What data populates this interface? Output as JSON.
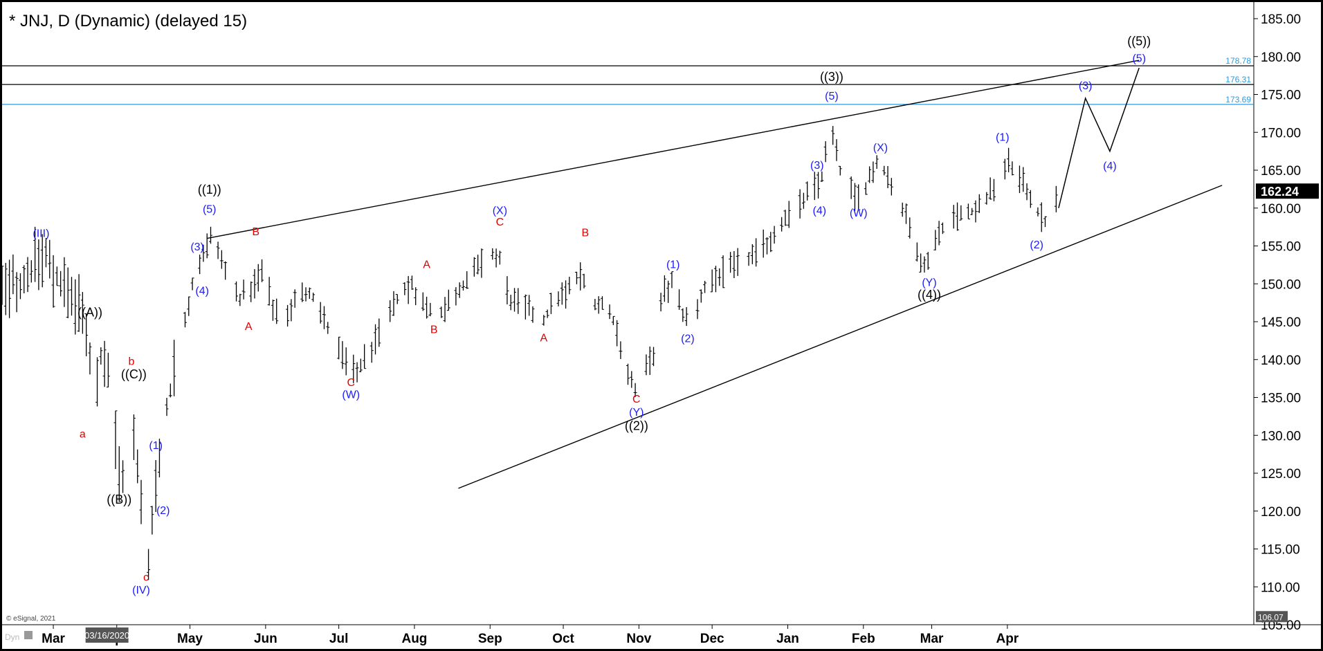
{
  "title": "* JNJ, D (Dynamic) (delayed 15)",
  "copyright": "© eSignal, 2021",
  "corner_label": "Dyn",
  "current_price": "162.24",
  "low_label": "106.07",
  "date_marker": "03/16/2020",
  "colors": {
    "wave_black": "#000000",
    "wave_blue": "#1a1aff",
    "wave_red": "#e00000",
    "fib_blue": "#2a9be0",
    "price_badge": "#000000"
  },
  "chart_data": {
    "type": "ohlc-bar",
    "ylim": [
      105,
      185
    ],
    "y_ticks": [
      "185.00",
      "180.00",
      "175.00",
      "170.00",
      "165.00",
      "160.00",
      "155.00",
      "150.00",
      "145.00",
      "140.00",
      "135.00",
      "130.00",
      "125.00",
      "120.00",
      "115.00",
      "110.00",
      "105.00"
    ],
    "x_ticks": [
      "Mar",
      "Apr",
      "May",
      "Jun",
      "Jul",
      "Aug",
      "Sep",
      "Oct",
      "Nov",
      "Dec",
      "Jan",
      "Feb",
      "Mar",
      "Apr"
    ],
    "x_tick_day": [
      -11,
      15,
      45,
      76,
      106,
      137,
      168,
      198,
      229,
      259,
      290,
      321,
      349,
      380
    ],
    "day_range": [
      -32,
      481
    ],
    "fib_levels": [
      {
        "value": 178.78,
        "label": "178.78"
      },
      {
        "value": 176.31,
        "label": "176.31"
      },
      {
        "value": 173.69,
        "label": "173.69"
      }
    ],
    "price_path": [
      [
        -32,
        149
      ],
      [
        -22,
        151
      ],
      [
        -16,
        154
      ],
      [
        -8,
        150
      ],
      [
        -2,
        148
      ],
      [
        3,
        144
      ],
      [
        6,
        135
      ],
      [
        9,
        142
      ],
      [
        12,
        138
      ],
      [
        15,
        128
      ],
      [
        17,
        123
      ],
      [
        20,
        136
      ],
      [
        23,
        126
      ],
      [
        26,
        118
      ],
      [
        28,
        113
      ],
      [
        30,
        122
      ],
      [
        34,
        130
      ],
      [
        38,
        138
      ],
      [
        42,
        144
      ],
      [
        46,
        150
      ],
      [
        50,
        154
      ],
      [
        54,
        156
      ],
      [
        57,
        154
      ],
      [
        61,
        150
      ],
      [
        66,
        148
      ],
      [
        71,
        150
      ],
      [
        75,
        152
      ],
      [
        79,
        147
      ],
      [
        84,
        146
      ],
      [
        89,
        148
      ],
      [
        94,
        149
      ],
      [
        99,
        146
      ],
      [
        104,
        142
      ],
      [
        109,
        140
      ],
      [
        113,
        138
      ],
      [
        118,
        141
      ],
      [
        124,
        144
      ],
      [
        130,
        148
      ],
      [
        136,
        150
      ],
      [
        141,
        147
      ],
      [
        147,
        146
      ],
      [
        152,
        148
      ],
      [
        157,
        150
      ],
      [
        163,
        152
      ],
      [
        168,
        154
      ],
      [
        172,
        153
      ],
      [
        176,
        148
      ],
      [
        181,
        147
      ],
      [
        186,
        146
      ],
      [
        190,
        145
      ],
      [
        195,
        148
      ],
      [
        200,
        149
      ],
      [
        205,
        151
      ],
      [
        209,
        148
      ],
      [
        214,
        147
      ],
      [
        219,
        145
      ],
      [
        223,
        140
      ],
      [
        226,
        137
      ],
      [
        228,
        135
      ],
      [
        231,
        138
      ],
      [
        235,
        141
      ],
      [
        239,
        149
      ],
      [
        243,
        150
      ],
      [
        247,
        146
      ],
      [
        251,
        144
      ],
      [
        255,
        149
      ],
      [
        260,
        151
      ],
      [
        266,
        152
      ],
      [
        272,
        153
      ],
      [
        277,
        154
      ],
      [
        283,
        156
      ],
      [
        289,
        159
      ],
      [
        294,
        160
      ],
      [
        299,
        162
      ],
      [
        304,
        164
      ],
      [
        307,
        170
      ],
      [
        309,
        169
      ],
      [
        311,
        165
      ],
      [
        315,
        163
      ],
      [
        318,
        161
      ],
      [
        322,
        163
      ],
      [
        326,
        166
      ],
      [
        330,
        165
      ],
      [
        334,
        162
      ],
      [
        338,
        159
      ],
      [
        343,
        155
      ],
      [
        346,
        152
      ],
      [
        348,
        154
      ],
      [
        352,
        157
      ],
      [
        357,
        159
      ],
      [
        362,
        159
      ],
      [
        368,
        160
      ],
      [
        373,
        162
      ],
      [
        378,
        165
      ],
      [
        381,
        166
      ],
      [
        385,
        164
      ],
      [
        389,
        162
      ],
      [
        393,
        159
      ],
      [
        396,
        158
      ],
      [
        400,
        161
      ]
    ],
    "projection": [
      [
        401,
        160
      ],
      [
        412,
        174.5
      ],
      [
        422,
        167.5
      ],
      [
        434,
        178.5
      ]
    ],
    "trendlines": [
      {
        "from": [
          52,
          156
        ],
        "to": [
          434,
          179.5
        ]
      },
      {
        "from": [
          155,
          123
        ],
        "to": [
          468,
          163
        ]
      }
    ],
    "wave_labels": [
      {
        "text": "(III)",
        "day": -16,
        "price": 156.2,
        "color": "blue"
      },
      {
        "text": "((A))",
        "day": 4,
        "price": 145.7,
        "color": "black"
      },
      {
        "text": "b",
        "day": 21,
        "price": 139.3,
        "color": "red"
      },
      {
        "text": "((C))",
        "day": 22,
        "price": 137.5,
        "color": "black"
      },
      {
        "text": "a",
        "day": 1,
        "price": 129.7,
        "color": "red"
      },
      {
        "text": "((B))",
        "day": 16,
        "price": 121.0,
        "color": "black"
      },
      {
        "text": "(1)",
        "day": 31,
        "price": 128.2,
        "color": "blue"
      },
      {
        "text": "(2)",
        "day": 34,
        "price": 119.6,
        "color": "blue"
      },
      {
        "text": "c",
        "day": 27,
        "price": 110.8,
        "color": "red"
      },
      {
        "text": "(IV)",
        "day": 25,
        "price": 109.1,
        "color": "blue"
      },
      {
        "text": "((1))",
        "day": 53,
        "price": 161.9,
        "color": "black"
      },
      {
        "text": "(5)",
        "day": 53,
        "price": 159.4,
        "color": "blue"
      },
      {
        "text": "(3)",
        "day": 48,
        "price": 154.4,
        "color": "blue"
      },
      {
        "text": "(4)",
        "day": 50,
        "price": 148.6,
        "color": "blue"
      },
      {
        "text": "B",
        "day": 72,
        "price": 156.4,
        "color": "red"
      },
      {
        "text": "A",
        "day": 69,
        "price": 143.9,
        "color": "red"
      },
      {
        "text": "C",
        "day": 111,
        "price": 136.5,
        "color": "red"
      },
      {
        "text": "(W)",
        "day": 111,
        "price": 134.9,
        "color": "blue"
      },
      {
        "text": "A",
        "day": 142,
        "price": 152.1,
        "color": "red"
      },
      {
        "text": "B",
        "day": 145,
        "price": 143.5,
        "color": "red"
      },
      {
        "text": "(X)",
        "day": 172,
        "price": 159.2,
        "color": "blue"
      },
      {
        "text": "C",
        "day": 172,
        "price": 157.7,
        "color": "red"
      },
      {
        "text": "A",
        "day": 190,
        "price": 142.4,
        "color": "red"
      },
      {
        "text": "B",
        "day": 207,
        "price": 156.3,
        "color": "red"
      },
      {
        "text": "C",
        "day": 228,
        "price": 134.3,
        "color": "red"
      },
      {
        "text": "(Y)",
        "day": 228,
        "price": 132.6,
        "color": "blue"
      },
      {
        "text": "((2))",
        "day": 228,
        "price": 130.7,
        "color": "black"
      },
      {
        "text": "(1)",
        "day": 243,
        "price": 152.1,
        "color": "blue"
      },
      {
        "text": "(2)",
        "day": 249,
        "price": 142.3,
        "color": "blue"
      },
      {
        "text": "((3))",
        "day": 308,
        "price": 176.8,
        "color": "black"
      },
      {
        "text": "(5)",
        "day": 308,
        "price": 174.3,
        "color": "blue"
      },
      {
        "text": "(3)",
        "day": 302,
        "price": 165.2,
        "color": "blue"
      },
      {
        "text": "(4)",
        "day": 303,
        "price": 159.2,
        "color": "blue"
      },
      {
        "text": "(X)",
        "day": 328,
        "price": 167.5,
        "color": "blue"
      },
      {
        "text": "(W)",
        "day": 319,
        "price": 158.9,
        "color": "blue"
      },
      {
        "text": "(Y)",
        "day": 348,
        "price": 149.7,
        "color": "blue"
      },
      {
        "text": "((4))",
        "day": 348,
        "price": 148.0,
        "color": "black"
      },
      {
        "text": "(1)",
        "day": 378,
        "price": 168.9,
        "color": "blue"
      },
      {
        "text": "(2)",
        "day": 392,
        "price": 154.7,
        "color": "blue"
      },
      {
        "text": "(3)",
        "day": 412,
        "price": 175.7,
        "color": "blue"
      },
      {
        "text": "(4)",
        "day": 422,
        "price": 165.1,
        "color": "blue"
      },
      {
        "text": "((5))",
        "day": 434,
        "price": 181.5,
        "color": "black"
      },
      {
        "text": "(5)",
        "day": 434,
        "price": 179.3,
        "color": "blue"
      }
    ]
  }
}
